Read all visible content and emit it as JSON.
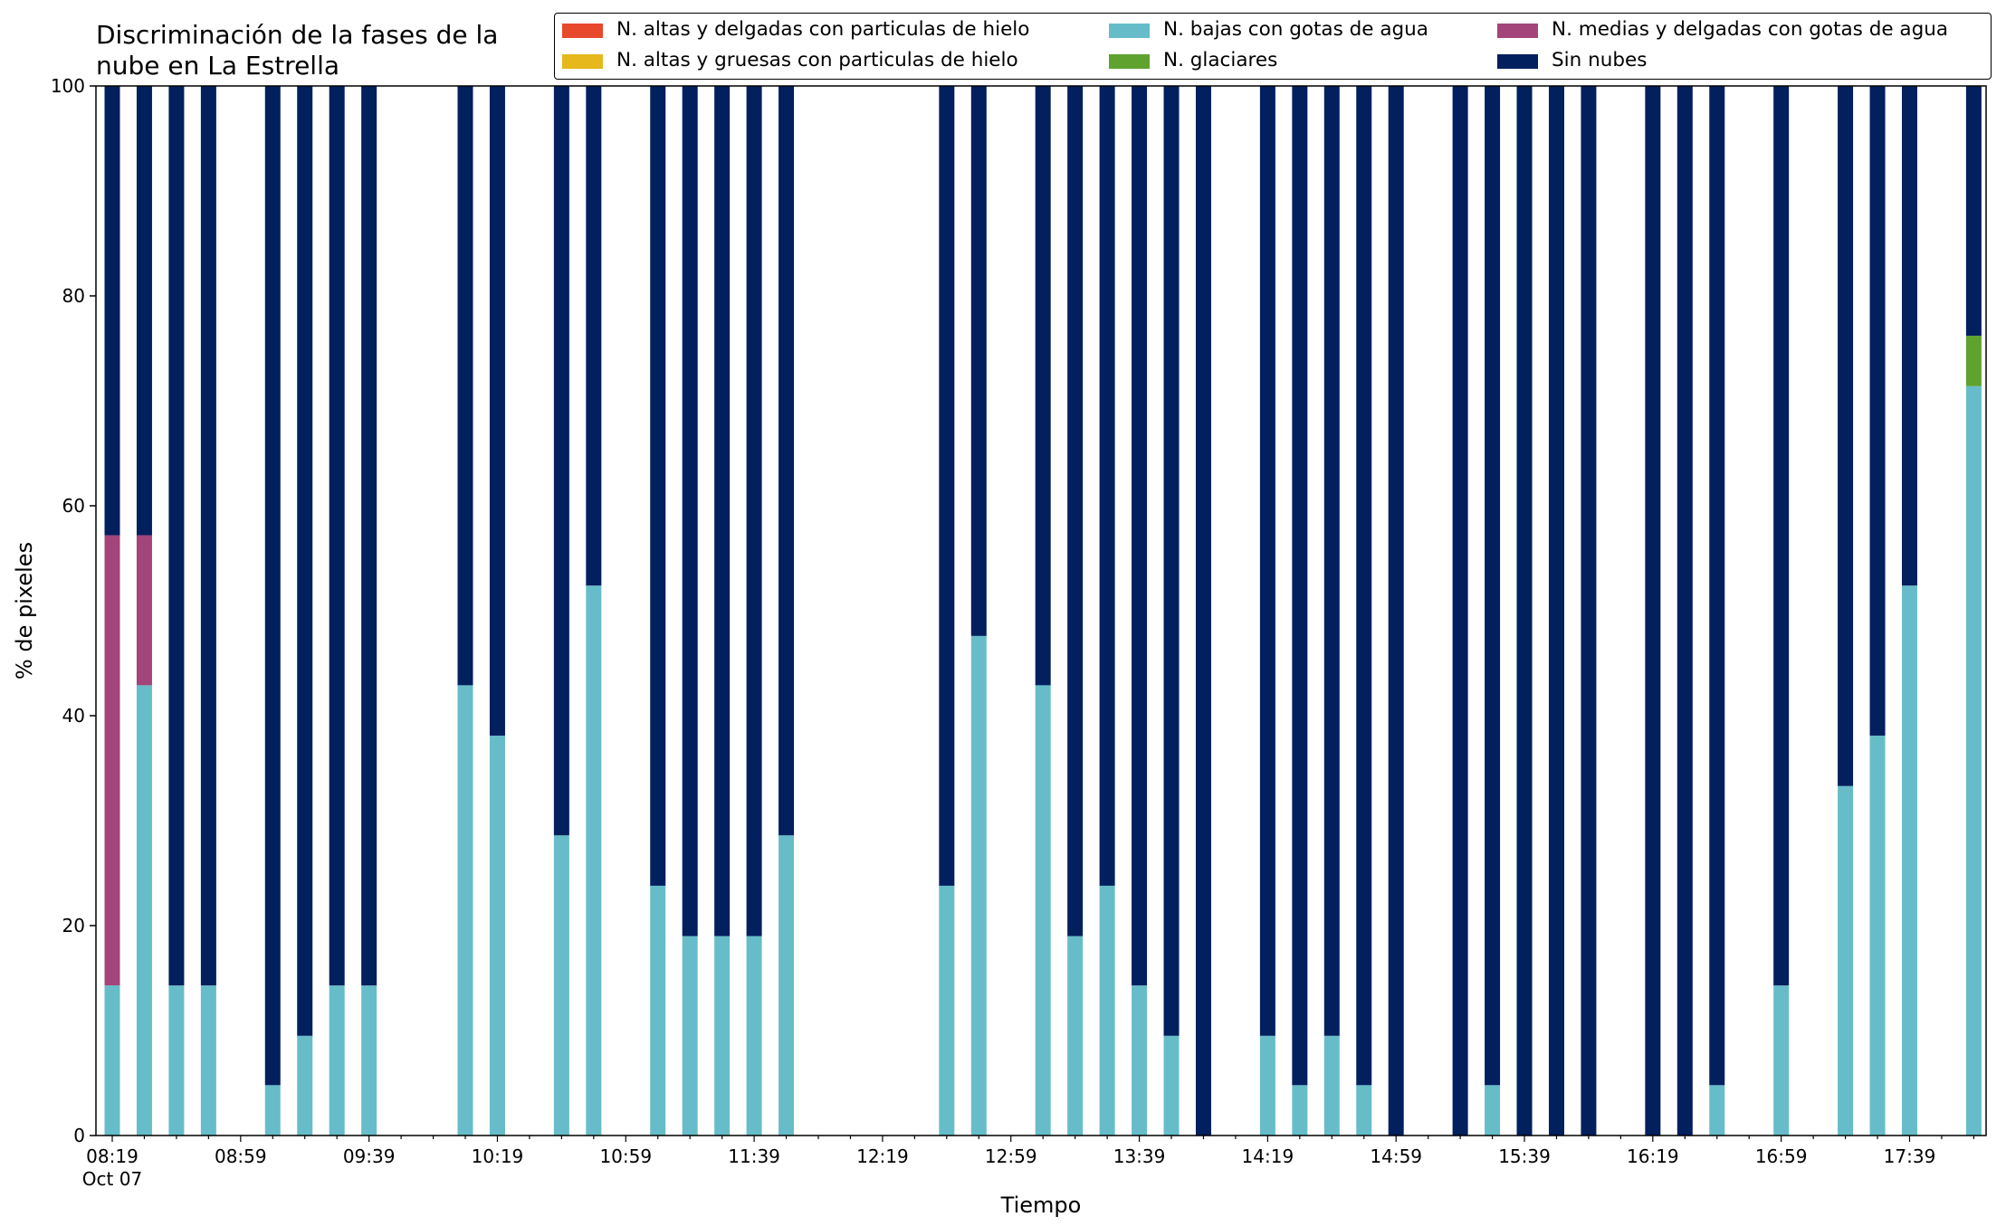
{
  "chart_data": {
    "type": "bar",
    "stacked": true,
    "title": "Discriminación de la fases de la nube en La Estrella",
    "title_lines": [
      "Discriminación de la fases de la",
      "nube en La Estrella"
    ],
    "xlabel": "Tiempo",
    "ylabel": "% de pixeles",
    "ylim": [
      0,
      100
    ],
    "yticks": [
      0,
      20,
      40,
      60,
      80,
      100
    ],
    "date_label": "Oct 07",
    "x_tick_labels": [
      "08:19",
      "08:59",
      "09:39",
      "10:19",
      "10:59",
      "11:39",
      "12:19",
      "12:59",
      "13:39",
      "14:19",
      "14:59",
      "15:39",
      "16:19",
      "16:59",
      "17:39"
    ],
    "legend_location": "upper right",
    "times": [
      "08:19",
      "08:29",
      "08:39",
      "08:49",
      "08:59",
      "09:09",
      "09:19",
      "09:29",
      "09:39",
      "09:49",
      "09:59",
      "10:09",
      "10:19",
      "10:29",
      "10:39",
      "10:49",
      "10:59",
      "11:09",
      "11:19",
      "11:29",
      "11:39",
      "11:49",
      "11:59",
      "12:09",
      "12:19",
      "12:29",
      "12:39",
      "12:49",
      "12:59",
      "13:09",
      "13:19",
      "13:29",
      "13:39",
      "13:49",
      "13:59",
      "14:09",
      "14:19",
      "14:29",
      "14:39",
      "14:49",
      "14:59",
      "15:09",
      "15:19",
      "15:29",
      "15:39",
      "15:49",
      "15:59",
      "16:09",
      "16:19",
      "16:29",
      "16:39",
      "16:49",
      "16:59",
      "17:09",
      "17:19",
      "17:29",
      "17:39",
      "17:49",
      "17:59"
    ],
    "series": [
      {
        "name": "N. altas y delgadas con particulas de hielo",
        "color": "#e8482c",
        "values": [
          0,
          0,
          0,
          0,
          null,
          0,
          0,
          0,
          0,
          null,
          null,
          0,
          0,
          null,
          0,
          0,
          null,
          0,
          0,
          0,
          0,
          0,
          null,
          null,
          null,
          null,
          0,
          0,
          null,
          0,
          0,
          0,
          0,
          0,
          0,
          null,
          0,
          0,
          0,
          0,
          0,
          null,
          0,
          0,
          0,
          0,
          0,
          null,
          0,
          0,
          0,
          null,
          0,
          null,
          0,
          0,
          0,
          null,
          0
        ]
      },
      {
        "name": "N. altas y gruesas con particulas de hielo",
        "color": "#e6b81b",
        "values": [
          0,
          0,
          0,
          0,
          null,
          0,
          0,
          0,
          0,
          null,
          null,
          0,
          0,
          null,
          0,
          0,
          null,
          0,
          0,
          0,
          0,
          0,
          null,
          null,
          null,
          null,
          0,
          0,
          null,
          0,
          0,
          0,
          0,
          0,
          0,
          null,
          0,
          0,
          0,
          0,
          0,
          null,
          0,
          0,
          0,
          0,
          0,
          null,
          0,
          0,
          0,
          null,
          0,
          null,
          0,
          0,
          0,
          null,
          0
        ]
      },
      {
        "name": "N. bajas con gotas de agua",
        "color": "#66bdc9",
        "values": [
          14.3,
          42.9,
          14.3,
          14.3,
          null,
          4.8,
          9.5,
          14.3,
          14.3,
          null,
          null,
          42.9,
          38.1,
          null,
          28.6,
          52.4,
          null,
          23.8,
          19.0,
          19.0,
          19.0,
          28.6,
          null,
          null,
          null,
          null,
          23.8,
          47.6,
          null,
          42.9,
          19.0,
          23.8,
          14.3,
          9.5,
          0,
          null,
          9.5,
          4.8,
          9.5,
          4.8,
          0,
          null,
          0,
          4.8,
          0,
          0,
          0,
          null,
          0,
          0,
          4.8,
          null,
          14.3,
          null,
          33.3,
          38.1,
          52.4,
          null,
          71.4
        ]
      },
      {
        "name": "N. glaciares",
        "color": "#5fa22e",
        "values": [
          0,
          0,
          0,
          0,
          null,
          0,
          0,
          0,
          0,
          null,
          null,
          0,
          0,
          null,
          0,
          0,
          null,
          0,
          0,
          0,
          0,
          0,
          null,
          null,
          null,
          null,
          0,
          0,
          null,
          0,
          0,
          0,
          0,
          0,
          0,
          null,
          0,
          0,
          0,
          0,
          0,
          null,
          0,
          0,
          0,
          0,
          0,
          null,
          0,
          0,
          0,
          null,
          0,
          null,
          0,
          0,
          0,
          null,
          4.8
        ]
      },
      {
        "name": "N. medias y delgadas con gotas de agua",
        "color": "#a3457a",
        "values": [
          42.9,
          14.3,
          0,
          0,
          null,
          0,
          0,
          0,
          0,
          null,
          null,
          0,
          0,
          null,
          0,
          0,
          null,
          0,
          0,
          0,
          0,
          0,
          null,
          null,
          null,
          null,
          0,
          0,
          null,
          0,
          0,
          0,
          0,
          0,
          0,
          null,
          0,
          0,
          0,
          0,
          0,
          null,
          0,
          0,
          0,
          0,
          0,
          null,
          0,
          0,
          0,
          null,
          0,
          null,
          0,
          0,
          0,
          null,
          0
        ]
      },
      {
        "name": "Sin nubes",
        "color": "#021f5e",
        "values": [
          42.8,
          42.8,
          85.7,
          85.7,
          null,
          95.2,
          90.5,
          85.7,
          85.7,
          null,
          null,
          57.1,
          61.9,
          null,
          71.4,
          47.6,
          null,
          76.2,
          81.0,
          81.0,
          81.0,
          71.4,
          null,
          null,
          null,
          null,
          76.2,
          52.4,
          null,
          57.1,
          81.0,
          76.2,
          85.7,
          90.5,
          100,
          null,
          90.5,
          95.2,
          90.5,
          95.2,
          100,
          null,
          100,
          95.2,
          100,
          100,
          100,
          null,
          100,
          100,
          95.2,
          null,
          85.7,
          null,
          66.7,
          61.9,
          47.6,
          null,
          23.8
        ]
      }
    ]
  }
}
